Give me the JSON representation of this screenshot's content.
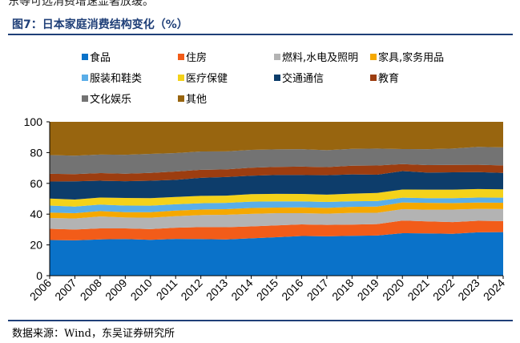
{
  "header": {
    "prev_text": "东等可选消费增速显著放缓。",
    "figure_title": "图7：日本家庭消费结构变化（%）"
  },
  "footer": {
    "source": "数据来源：Wind，东吴证券研究所"
  },
  "chart_data": {
    "type": "area",
    "stacked": true,
    "x": [
      "2006",
      "2007",
      "2008",
      "2009",
      "2010",
      "2011",
      "2012",
      "2013",
      "2014",
      "2015",
      "2016",
      "2017",
      "2018",
      "2019",
      "2020",
      "2021",
      "2022",
      "2023",
      "2024"
    ],
    "ylim": [
      0,
      100
    ],
    "yticks": [
      0,
      20,
      40,
      60,
      80,
      100
    ],
    "grid": false,
    "legend": "top",
    "series": [
      {
        "name": "食品",
        "color": "#0a72c9",
        "values": [
          23.2,
          23.0,
          23.6,
          23.8,
          23.3,
          23.9,
          23.8,
          23.6,
          24.3,
          25.0,
          25.8,
          25.6,
          25.9,
          26.1,
          27.6,
          27.5,
          27.2,
          28.2,
          28.3
        ]
      },
      {
        "name": "住房",
        "color": "#f25c19",
        "values": [
          7.3,
          7.0,
          7.1,
          6.9,
          7.0,
          7.3,
          7.8,
          7.9,
          7.7,
          7.7,
          7.5,
          7.4,
          7.3,
          7.4,
          8.2,
          7.8,
          7.6,
          7.5,
          7.2
        ]
      },
      {
        "name": "燃料,水电及照明",
        "color": "#b3b3b3",
        "values": [
          7.0,
          7.2,
          7.8,
          7.1,
          7.4,
          7.5,
          7.8,
          8.1,
          8.2,
          7.9,
          7.3,
          7.3,
          7.6,
          7.4,
          7.4,
          7.6,
          8.2,
          7.7,
          7.8
        ]
      },
      {
        "name": "家具,家务用品",
        "color": "#f5a800",
        "values": [
          3.5,
          3.4,
          3.5,
          3.5,
          3.6,
          3.6,
          3.6,
          3.6,
          3.8,
          3.7,
          3.8,
          3.8,
          3.9,
          4.0,
          4.4,
          4.4,
          4.2,
          4.1,
          4.1
        ]
      },
      {
        "name": "服装和鞋类",
        "color": "#5aaee8",
        "values": [
          4.6,
          4.3,
          4.2,
          4.3,
          4.2,
          4.1,
          4.1,
          4.1,
          4.1,
          4.0,
          3.9,
          3.8,
          3.7,
          3.6,
          3.1,
          3.1,
          3.2,
          3.3,
          3.3
        ]
      },
      {
        "name": "医疗保健",
        "color": "#f4d21a",
        "values": [
          4.5,
          4.6,
          4.6,
          4.9,
          4.9,
          4.8,
          4.8,
          4.7,
          4.9,
          4.9,
          4.8,
          4.8,
          4.9,
          5.3,
          5.3,
          5.5,
          5.5,
          5.5,
          5.4
        ]
      },
      {
        "name": "交通通信",
        "color": "#0d3d6b",
        "values": [
          11.1,
          11.8,
          10.9,
          10.9,
          11.3,
          11.1,
          11.7,
          12.1,
          12.0,
          12.2,
          12.3,
          12.6,
          12.5,
          11.8,
          12.0,
          11.1,
          11.3,
          11.0,
          10.7
        ]
      },
      {
        "name": "教育",
        "color": "#9c3d10",
        "values": [
          5.0,
          4.7,
          5.0,
          4.9,
          5.1,
          5.4,
          5.2,
          5.0,
          5.2,
          5.3,
          5.5,
          5.3,
          5.7,
          6.0,
          4.5,
          4.9,
          4.8,
          4.8,
          4.9
        ]
      },
      {
        "name": "文化娱乐",
        "color": "#737373",
        "values": [
          12.2,
          12.0,
          12.0,
          12.3,
          12.4,
          12.0,
          11.9,
          11.7,
          11.6,
          11.4,
          11.3,
          11.0,
          10.9,
          11.0,
          9.8,
          10.3,
          10.6,
          11.6,
          11.7
        ]
      },
      {
        "name": "其他",
        "color": "#98650f",
        "values": [
          21.6,
          22.0,
          21.3,
          21.4,
          20.8,
          20.3,
          19.3,
          19.2,
          18.2,
          17.9,
          17.8,
          18.4,
          17.6,
          17.4,
          17.7,
          17.8,
          17.4,
          16.3,
          16.6
        ]
      }
    ]
  }
}
